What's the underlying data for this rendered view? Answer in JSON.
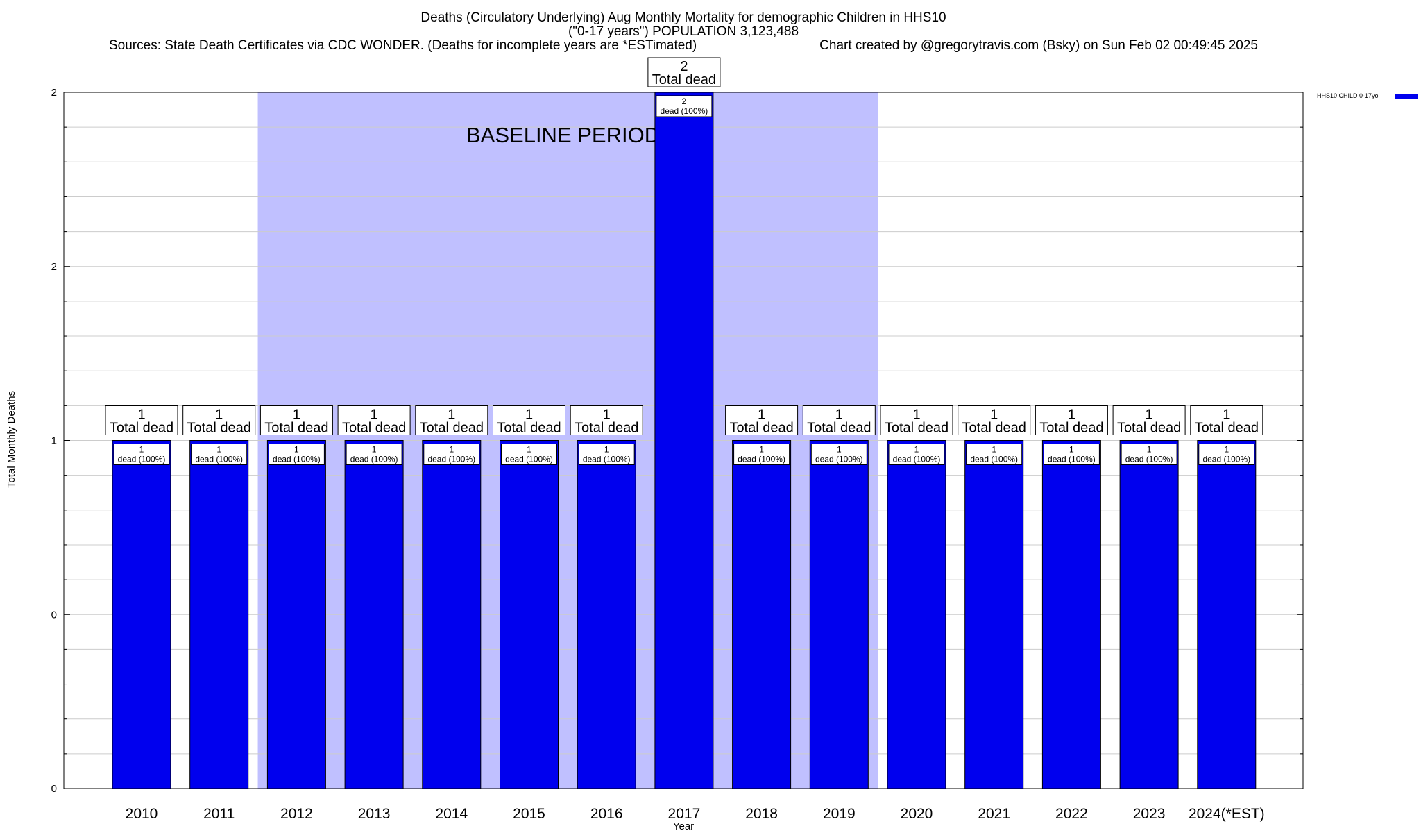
{
  "title": {
    "line1": "Deaths (Circulatory Underlying) Aug Monthly Mortality for demographic Children in HHS10",
    "line2": "(\"0-17 years\") POPULATION 3,123,488",
    "sources": "Sources: State Death Certificates via CDC WONDER. (Deaths for incomplete years are *ESTimated)",
    "credit": "Chart created by @gregorytravis.com (Bsky) on Sun Feb 02 00:49:45 2025"
  },
  "colors": {
    "bar": "#0000ee",
    "baseline_shade": "#c0c0ff",
    "grid": "#cccccc"
  },
  "chart_data": {
    "type": "bar",
    "title": "Deaths (Circulatory Underlying) Aug Monthly Mortality for demographic Children in HHS10",
    "xlabel": "Year",
    "ylabel": "Total Monthly Deaths",
    "y_tick_labels": [
      "0",
      "0",
      "1",
      "2",
      "2"
    ],
    "ylim": [
      0,
      2
    ],
    "grid": true,
    "legend_position": "top-right",
    "categories": [
      "2010",
      "2011",
      "2012",
      "2013",
      "2014",
      "2015",
      "2016",
      "2017",
      "2018",
      "2019",
      "2020",
      "2021",
      "2022",
      "2023",
      "2024(*EST)"
    ],
    "series": [
      {
        "name": "HHS10 CHILD 0-17yo",
        "values": [
          1,
          1,
          1,
          1,
          1,
          1,
          1,
          2,
          1,
          1,
          1,
          1,
          1,
          1,
          1
        ]
      }
    ],
    "top_labels": [
      "1",
      "1",
      "1",
      "1",
      "1",
      "1",
      "1",
      "2",
      "1",
      "1",
      "1",
      "1",
      "1",
      "1",
      "1"
    ],
    "top_label_suffix": "Total dead",
    "inner_labels": [
      "1",
      "1",
      "1",
      "1",
      "1",
      "1",
      "1",
      "2",
      "1",
      "1",
      "1",
      "1",
      "1",
      "1",
      "1"
    ],
    "inner_label_suffix": "dead (100%)",
    "baseline_period": {
      "label": "BASELINE PERIOD",
      "start": "2012",
      "end": "2019"
    }
  }
}
